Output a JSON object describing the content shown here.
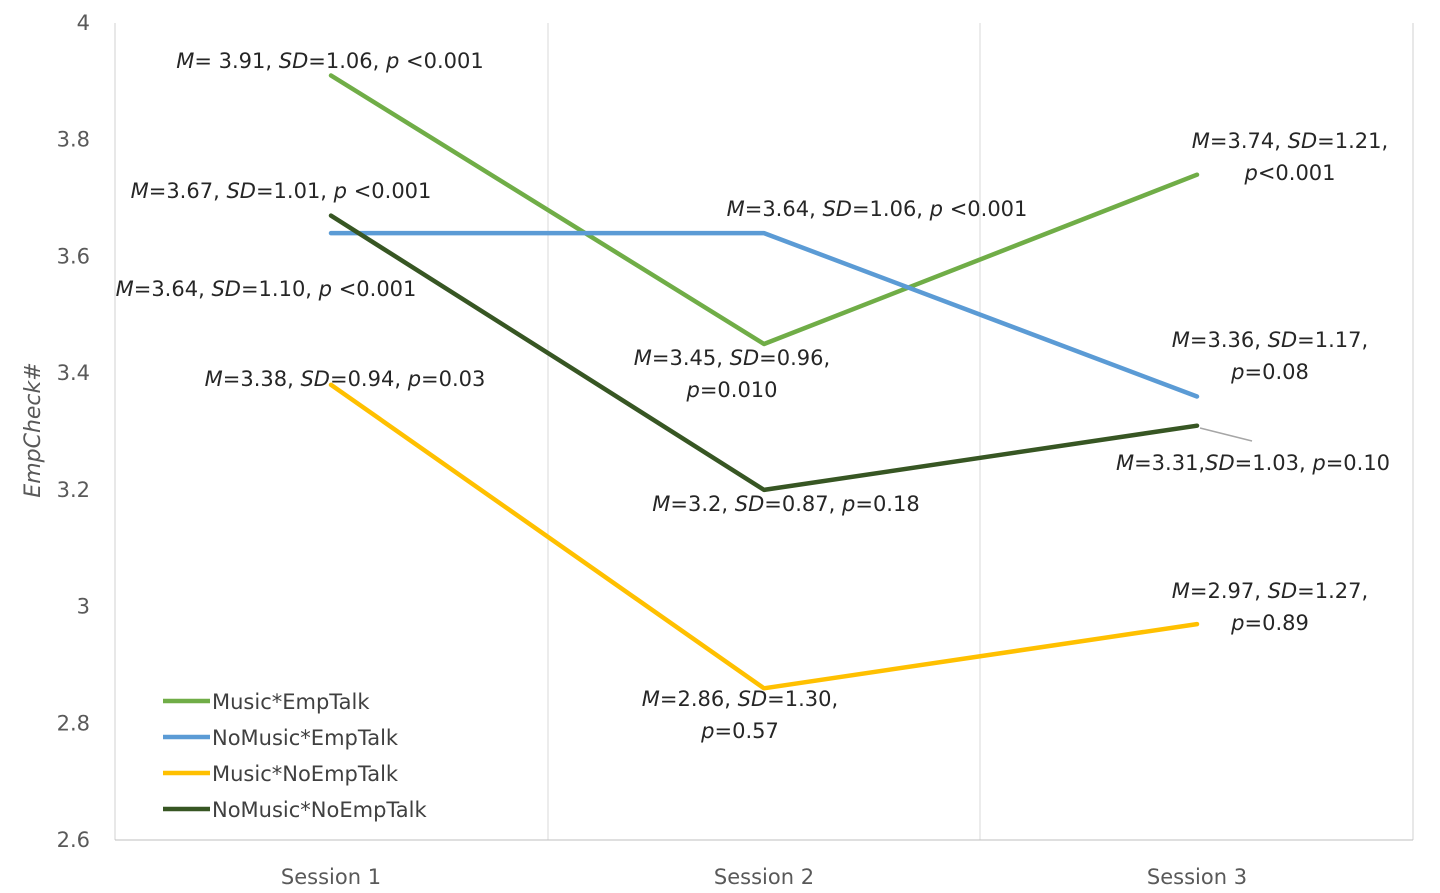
{
  "chart_data": {
    "type": "line",
    "title": "",
    "xlabel": "",
    "ylabel": "EmpCheck#",
    "categories": [
      "Session 1",
      "Session 2",
      "Session 3"
    ],
    "ylim": [
      2.6,
      4
    ],
    "yticks": [
      2.6,
      2.8,
      3,
      3.2,
      3.4,
      3.6,
      3.8,
      4
    ],
    "grid": "vertical",
    "legend_position": "bottom-left",
    "series": [
      {
        "name": "Music*EmpTalk",
        "color": "#70AD47",
        "values": [
          3.91,
          3.45,
          3.74
        ],
        "labels": [
          [
            "M= 3.91, SD=1.06, p <0.001"
          ],
          [
            "M=3.45, SD=0.96,",
            "p=0.010"
          ],
          [
            "M=3.74, SD=1.21,",
            "p<0.001"
          ]
        ]
      },
      {
        "name": "NoMusic*EmpTalk",
        "color": "#5B9BD5",
        "values": [
          3.64,
          3.64,
          3.36
        ],
        "labels": [
          [
            "M=3.64, SD=1.10, p <0.001"
          ],
          [
            "M=3.64, SD=1.06, p <0.001"
          ],
          [
            "M=3.36, SD=1.17,",
            "p=0.08"
          ]
        ]
      },
      {
        "name": "Music*NoEmpTalk",
        "color": "#FFC000",
        "values": [
          3.38,
          2.86,
          2.97
        ],
        "labels": [
          [
            "M=3.38, SD=0.94, p=0.03"
          ],
          [
            "M=2.86, SD=1.30,",
            "p=0.57"
          ],
          [
            "M=2.97, SD=1.27,",
            "p=0.89"
          ]
        ]
      },
      {
        "name": "NoMusic*NoEmpTalk",
        "color": "#375623",
        "values": [
          3.67,
          3.2,
          3.31
        ],
        "labels": [
          [
            "M=3.67, SD=1.01, p <0.001"
          ],
          [
            "M=3.2, SD=0.87, p=0.18"
          ],
          [
            "M=3.31,SD=1.03, p=0.10"
          ]
        ]
      }
    ]
  }
}
